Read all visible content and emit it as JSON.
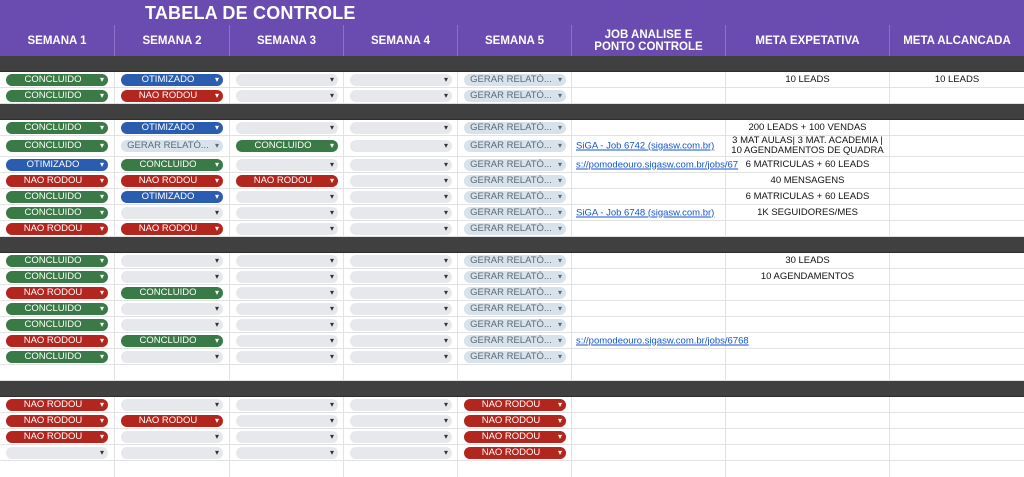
{
  "title": "TABELA DE CONTROLE",
  "headers": [
    "SEMANA 1",
    "SEMANA 2",
    "SEMANA 3",
    "SEMANA 4",
    "SEMANA 5",
    "JOB ANALISE E PONTO CONTROLE",
    "META EXPETATIVA",
    "META ALCANCADA"
  ],
  "colors": {
    "header_purple": "#6a4bb0",
    "separator": "#404040",
    "green": "#3a7a46",
    "blue": "#2a5cb0",
    "red": "#b3261e",
    "empty": "#e6e8eb",
    "gray": "#d8e2ea",
    "link": "#1155cc"
  },
  "dropdown_icon": "chevron-down-icon",
  "rows": [
    {
      "sep": true
    },
    {
      "cells": [
        {
          "chip": "green",
          "label": "CONCLUIDO"
        },
        {
          "chip": "blue",
          "label": "OTIMIZADO"
        },
        {
          "chip": "empty",
          "label": ""
        },
        {
          "chip": "empty",
          "label": ""
        },
        {
          "chip": "gray",
          "label": "GERAR RELATÓ..."
        }
      ],
      "job": "",
      "meta": "10 LEADS",
      "alcancada": "10 LEADS"
    },
    {
      "cells": [
        {
          "chip": "green",
          "label": "CONCLUIDO"
        },
        {
          "chip": "red",
          "label": "NAO RODOU"
        },
        {
          "chip": "empty",
          "label": ""
        },
        {
          "chip": "empty",
          "label": ""
        },
        {
          "chip": "gray",
          "label": "GERAR RELATÓ..."
        }
      ],
      "job": "",
      "meta": "",
      "alcancada": ""
    },
    {
      "sep": true
    },
    {
      "cells": [
        {
          "chip": "green",
          "label": "CONCLUIDO"
        },
        {
          "chip": "blue",
          "label": "OTIMIZADO"
        },
        {
          "chip": "empty",
          "label": ""
        },
        {
          "chip": "empty",
          "label": ""
        },
        {
          "chip": "gray",
          "label": "GERAR RELATÓ..."
        }
      ],
      "job": "",
      "meta": "200 LEADS + 100 VENDAS",
      "alcancada": ""
    },
    {
      "cells": [
        {
          "chip": "green",
          "label": "CONCLUIDO"
        },
        {
          "chip": "gray",
          "label": "GERAR RELATÓ..."
        },
        {
          "chip": "green",
          "label": "CONCLUIDO"
        },
        {
          "chip": "empty",
          "label": ""
        },
        {
          "chip": "gray",
          "label": "GERAR RELATÓ..."
        }
      ],
      "job": "SiGA - Job 6742 (sigasw.com.br)",
      "meta": "3 MAT AULAS| 3 MAT. ACADEMIA | 10 AGENDAMENTOS DE QUADRA",
      "alcancada": ""
    },
    {
      "cells": [
        {
          "chip": "blue",
          "label": "OTIMIZADO"
        },
        {
          "chip": "green",
          "label": "CONCLUIDO"
        },
        {
          "chip": "empty",
          "label": ""
        },
        {
          "chip": "empty",
          "label": ""
        },
        {
          "chip": "gray",
          "label": "GERAR RELATÓ..."
        }
      ],
      "job": "s://pomodeouro.sigasw.com.br/jobs/67",
      "meta": "6 MATRICULAS + 60 LEADS",
      "alcancada": ""
    },
    {
      "cells": [
        {
          "chip": "red",
          "label": "NAO RODOU"
        },
        {
          "chip": "red",
          "label": "NAO RODOU"
        },
        {
          "chip": "red",
          "label": "NAO RODOU"
        },
        {
          "chip": "empty",
          "label": ""
        },
        {
          "chip": "gray",
          "label": "GERAR RELATÓ..."
        }
      ],
      "job": "",
      "meta": "40 MENSAGENS",
      "alcancada": ""
    },
    {
      "cells": [
        {
          "chip": "green",
          "label": "CONCLUIDO"
        },
        {
          "chip": "blue",
          "label": "OTIMIZADO"
        },
        {
          "chip": "empty",
          "label": ""
        },
        {
          "chip": "empty",
          "label": ""
        },
        {
          "chip": "gray",
          "label": "GERAR RELATÓ..."
        }
      ],
      "job": "",
      "meta": "6 MATRICULAS + 60 LEADS",
      "alcancada": ""
    },
    {
      "cells": [
        {
          "chip": "green",
          "label": "CONCLUIDO"
        },
        {
          "chip": "empty",
          "label": ""
        },
        {
          "chip": "empty",
          "label": ""
        },
        {
          "chip": "empty",
          "label": ""
        },
        {
          "chip": "gray",
          "label": "GERAR RELATÓ..."
        }
      ],
      "job": "SiGA - Job 6748 (sigasw.com.br)",
      "meta": "1K SEGUIDORES/MES",
      "alcancada": ""
    },
    {
      "cells": [
        {
          "chip": "red",
          "label": "NAO RODOU"
        },
        {
          "chip": "red",
          "label": "NAO RODOU"
        },
        {
          "chip": "empty",
          "label": ""
        },
        {
          "chip": "empty",
          "label": ""
        },
        {
          "chip": "gray",
          "label": "GERAR RELATÓ..."
        }
      ],
      "job": "",
      "meta": "",
      "alcancada": ""
    },
    {
      "sep": true
    },
    {
      "cells": [
        {
          "chip": "green",
          "label": "CONCLUIDO"
        },
        {
          "chip": "empty",
          "label": ""
        },
        {
          "chip": "empty",
          "label": ""
        },
        {
          "chip": "empty",
          "label": ""
        },
        {
          "chip": "gray",
          "label": "GERAR RELATÓ..."
        }
      ],
      "job": "",
      "meta": "30 LEADS",
      "alcancada": ""
    },
    {
      "cells": [
        {
          "chip": "green",
          "label": "CONCLUIDO"
        },
        {
          "chip": "empty",
          "label": ""
        },
        {
          "chip": "empty",
          "label": ""
        },
        {
          "chip": "empty",
          "label": ""
        },
        {
          "chip": "gray",
          "label": "GERAR RELATÓ..."
        }
      ],
      "job": "",
      "meta": "10 AGENDAMENTOS",
      "alcancada": ""
    },
    {
      "cells": [
        {
          "chip": "red",
          "label": "NAO RODOU"
        },
        {
          "chip": "green",
          "label": "CONCLUIDO"
        },
        {
          "chip": "empty",
          "label": ""
        },
        {
          "chip": "empty",
          "label": ""
        },
        {
          "chip": "gray",
          "label": "GERAR RELATÓ..."
        }
      ],
      "job": "",
      "meta": "",
      "alcancada": ""
    },
    {
      "cells": [
        {
          "chip": "green",
          "label": "CONCLUIDO"
        },
        {
          "chip": "empty",
          "label": ""
        },
        {
          "chip": "empty",
          "label": ""
        },
        {
          "chip": "empty",
          "label": ""
        },
        {
          "chip": "gray",
          "label": "GERAR RELATÓ..."
        }
      ],
      "job": "",
      "meta": "",
      "alcancada": ""
    },
    {
      "cells": [
        {
          "chip": "green",
          "label": "CONCLUIDO"
        },
        {
          "chip": "empty",
          "label": ""
        },
        {
          "chip": "empty",
          "label": ""
        },
        {
          "chip": "empty",
          "label": ""
        },
        {
          "chip": "gray",
          "label": "GERAR RELATÓ..."
        }
      ],
      "job": "",
      "meta": "",
      "alcancada": ""
    },
    {
      "cells": [
        {
          "chip": "red",
          "label": "NAO RODOU"
        },
        {
          "chip": "green",
          "label": "CONCLUIDO"
        },
        {
          "chip": "empty",
          "label": ""
        },
        {
          "chip": "empty",
          "label": ""
        },
        {
          "chip": "gray",
          "label": "GERAR RELATÓ..."
        }
      ],
      "job": "s://pomodeouro.sigasw.com.br/jobs/6768",
      "meta": "",
      "alcancada": ""
    },
    {
      "cells": [
        {
          "chip": "green",
          "label": "CONCLUIDO"
        },
        {
          "chip": "empty",
          "label": ""
        },
        {
          "chip": "empty",
          "label": ""
        },
        {
          "chip": "empty",
          "label": ""
        },
        {
          "chip": "gray",
          "label": "GERAR RELATÓ..."
        }
      ],
      "job": "",
      "meta": "",
      "alcancada": ""
    },
    {
      "cells": [
        {},
        {},
        {},
        {},
        {}
      ],
      "job": "",
      "meta": "",
      "alcancada": ""
    },
    {
      "sep": true
    },
    {
      "cells": [
        {
          "chip": "red",
          "label": "NAO RODOU"
        },
        {
          "chip": "empty",
          "label": ""
        },
        {
          "chip": "empty",
          "label": ""
        },
        {
          "chip": "empty",
          "label": ""
        },
        {
          "chip": "red",
          "label": "NAO RODOU"
        }
      ],
      "job": "",
      "meta": "",
      "alcancada": ""
    },
    {
      "cells": [
        {
          "chip": "red",
          "label": "NAO RODOU"
        },
        {
          "chip": "red",
          "label": "NAO RODOU"
        },
        {
          "chip": "empty",
          "label": ""
        },
        {
          "chip": "empty",
          "label": ""
        },
        {
          "chip": "red",
          "label": "NAO RODOU"
        }
      ],
      "job": "",
      "meta": "",
      "alcancada": ""
    },
    {
      "cells": [
        {
          "chip": "red",
          "label": "NAO RODOU"
        },
        {
          "chip": "empty",
          "label": ""
        },
        {
          "chip": "empty",
          "label": ""
        },
        {
          "chip": "empty",
          "label": ""
        },
        {
          "chip": "red",
          "label": "NAO RODOU"
        }
      ],
      "job": "",
      "meta": "",
      "alcancada": ""
    },
    {
      "cells": [
        {
          "chip": "empty",
          "label": ""
        },
        {
          "chip": "empty",
          "label": ""
        },
        {
          "chip": "empty",
          "label": ""
        },
        {
          "chip": "empty",
          "label": ""
        },
        {
          "chip": "red",
          "label": "NAO RODOU"
        }
      ],
      "job": "",
      "meta": "",
      "alcancada": ""
    },
    {
      "cells": [
        {},
        {},
        {},
        {},
        {}
      ],
      "job": "",
      "meta": "",
      "alcancada": ""
    }
  ]
}
